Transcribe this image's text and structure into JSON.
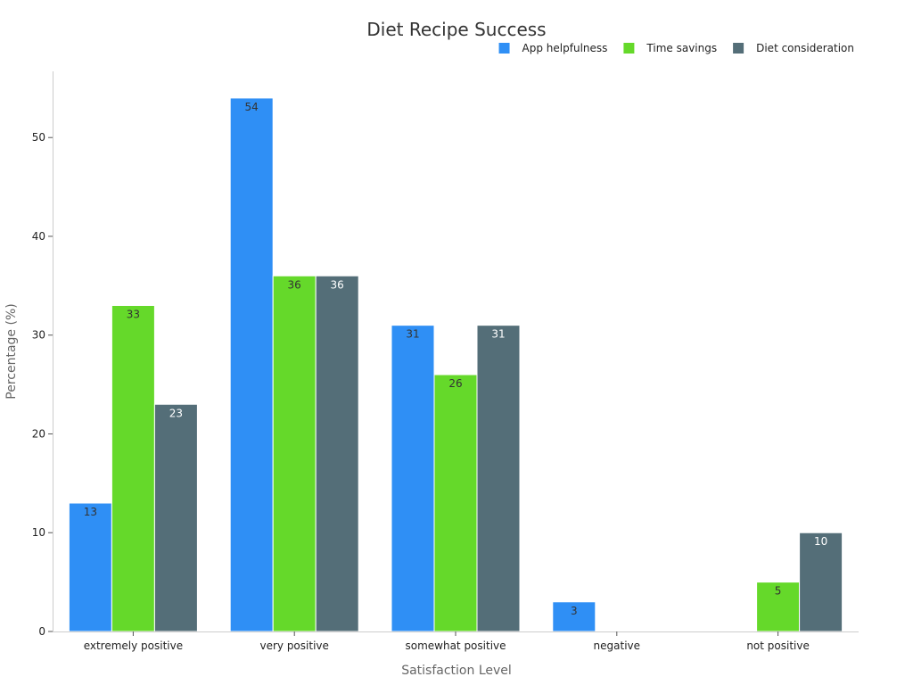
{
  "chart_data": {
    "type": "bar",
    "title": "Diet Recipe Success",
    "xlabel": "Satisfaction Level",
    "ylabel": "Percentage (%)",
    "categories": [
      "extremely positive",
      "very positive",
      "somewhat positive",
      "negative",
      "not positive"
    ],
    "series": [
      {
        "name": "App helpfulness",
        "color": "#2f8ff5",
        "label_color": "#333333",
        "values": [
          13,
          54,
          31,
          3,
          null
        ]
      },
      {
        "name": "Time savings",
        "color": "#65d92a",
        "label_color": "#333333",
        "values": [
          33,
          36,
          26,
          null,
          5
        ]
      },
      {
        "name": "Diet consideration",
        "color": "#546e78",
        "label_color": "#ffffff",
        "values": [
          23,
          36,
          31,
          null,
          10
        ]
      }
    ],
    "yticks": [
      0,
      10,
      20,
      30,
      40,
      50
    ],
    "ylim": [
      0,
      56.7
    ],
    "grid": false,
    "legend_position": "top-right"
  }
}
